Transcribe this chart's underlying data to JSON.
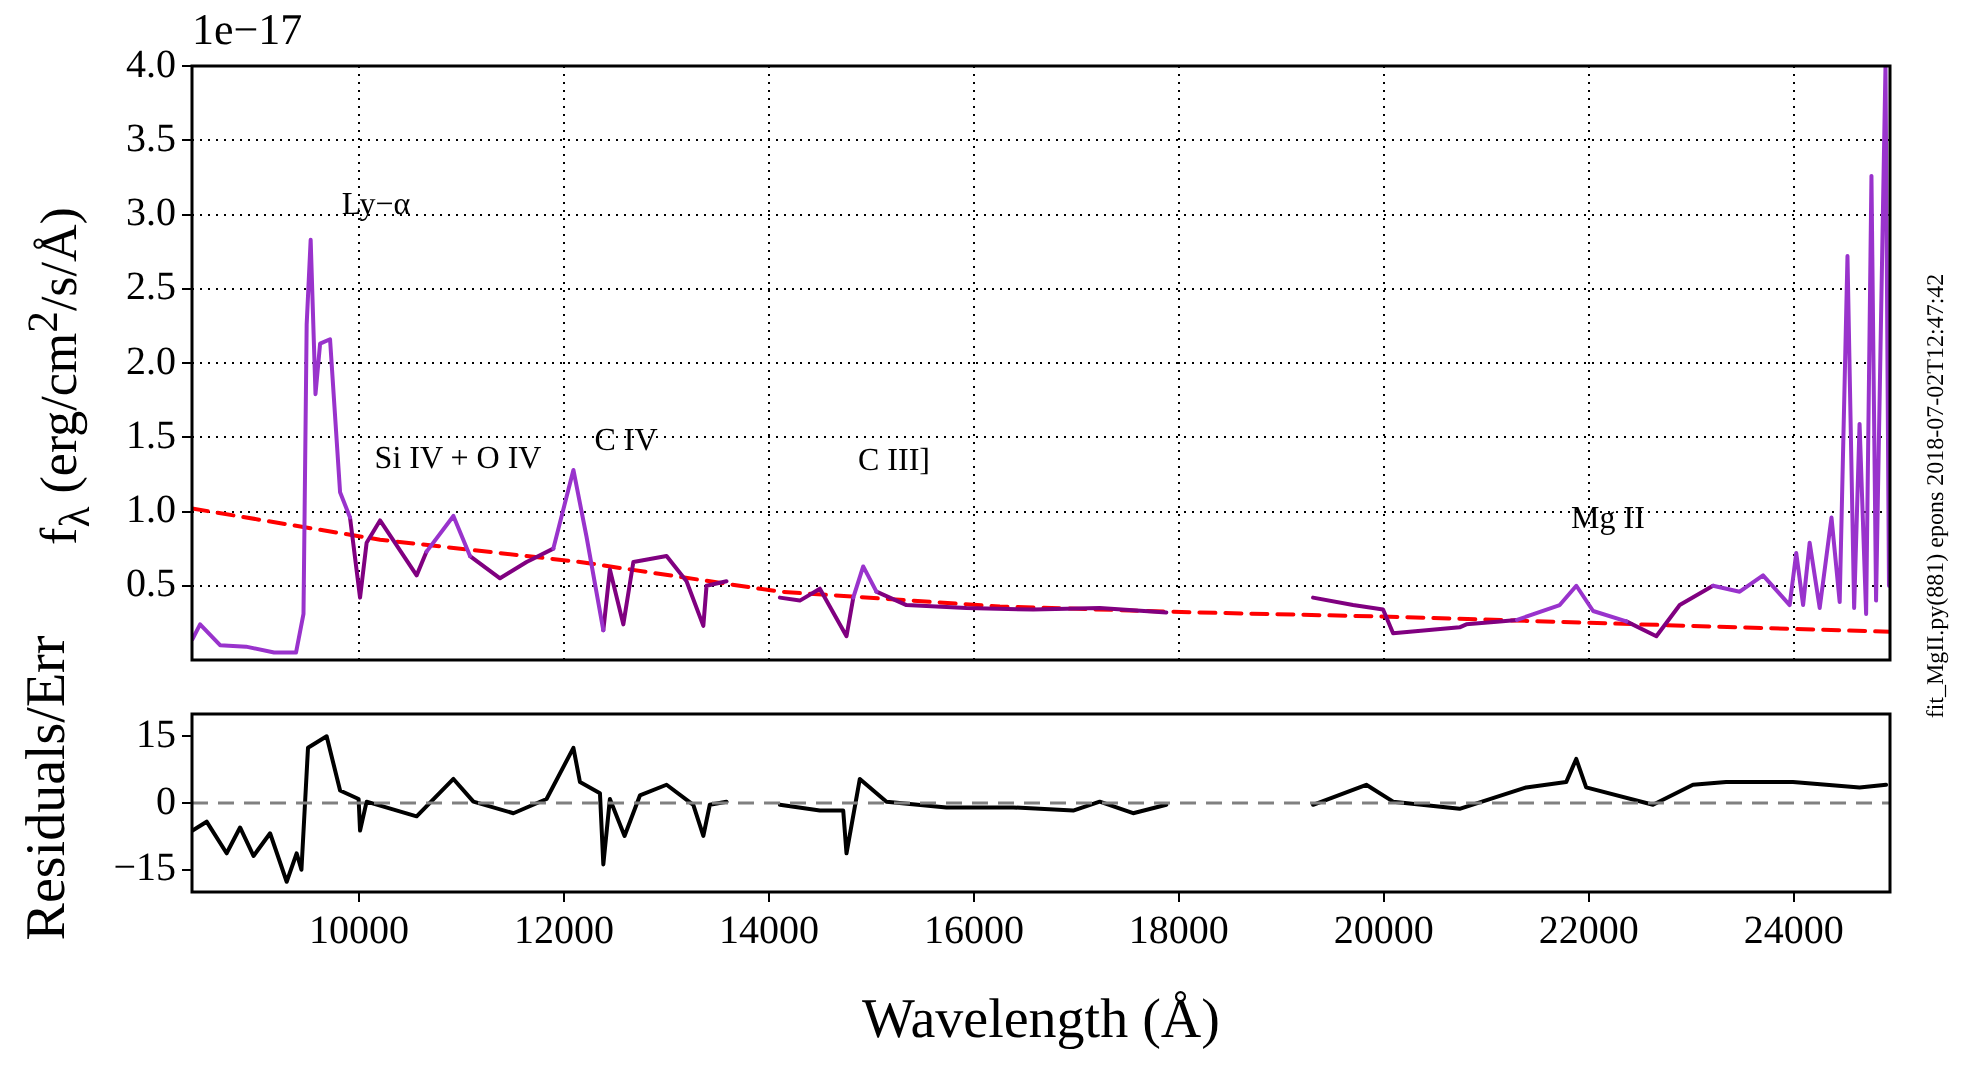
{
  "chart_data": [
    {
      "type": "line",
      "ylabel": "f$_{λ}$ (erg/cm$^{2}$/s/Å)",
      "annotations": [
        "1e−17",
        "fit_MgII.py(881) epons 2018-07-02T12:47:42",
        "Ly−α",
        "Si IV + O IV",
        "C IV",
        "C III]",
        "Mg II"
      ],
      "series": [
        {
          "color": "#9933cc",
          "x": [
            8375,
            8449,
            8644,
            8898,
            9171,
            9385,
            9458,
            9489,
            9528,
            9575,
            9620,
            9717,
            9815,
            9912,
            10300,
            10659,
            10921,
            11083,
            11500,
            11896,
            12092,
            12220,
            12384,
            13000,
            14823,
            14920,
            15049,
            18000,
            21300,
            21717,
            21879,
            22043,
            22367,
            22800,
            23213,
            23473,
            23701,
            23961,
            24025,
            24092,
            24156,
            24254,
            24369,
            24449,
            24525,
            24590,
            24643,
            24707,
            24759,
            24804,
            24896,
            24930
          ],
          "values": [
            0.14,
            0.24,
            0.1,
            0.09,
            0.05,
            0.05,
            0.31,
            2.26,
            2.83,
            1.79,
            2.13,
            2.16,
            1.13,
            0.96,
            null,
            0.73,
            0.97,
            0.7,
            null,
            0.75,
            1.28,
            0.83,
            0.2,
            null,
            0.42,
            0.63,
            0.46,
            null,
            0.27,
            0.37,
            0.5,
            0.33,
            0.26,
            null,
            0.5,
            0.46,
            0.57,
            0.37,
            0.72,
            0.37,
            0.79,
            0.35,
            0.96,
            0.39,
            2.72,
            0.35,
            1.59,
            0.31,
            3.26,
            0.4,
            4.0,
            0.5
          ]
        },
        {
          "color": "#800080",
          "x": [
            9912,
            10010,
            10074,
            10205,
            10562,
            10659,
            10900,
            11083,
            11376,
            11635,
            11896,
            12100,
            12384,
            12448,
            12579,
            12677,
            13001,
            13196,
            13360,
            13391,
            13586,
            13800,
            14107,
            14302,
            14497,
            14757,
            14823,
            14950,
            15049,
            15342,
            15927,
            16579,
            17228,
            17878,
            18600,
            19310,
            19700,
            19993,
            20091,
            20740,
            20806,
            21132,
            21300,
            21800,
            22367,
            22660,
            22888,
            23213
          ],
          "values": [
            0.96,
            0.42,
            0.79,
            0.94,
            0.57,
            0.73,
            null,
            0.7,
            0.55,
            0.66,
            0.75,
            null,
            0.2,
            0.61,
            0.24,
            0.66,
            0.7,
            0.53,
            0.23,
            0.5,
            0.53,
            null,
            0.42,
            0.4,
            0.48,
            0.16,
            0.42,
            null,
            0.46,
            0.37,
            0.35,
            0.34,
            0.35,
            0.32,
            null,
            0.42,
            0.37,
            0.34,
            0.18,
            0.22,
            0.24,
            0.26,
            0.27,
            null,
            0.26,
            0.16,
            0.37,
            0.5
          ]
        },
        {
          "color": "#ff0000",
          "line_style": "dashed",
          "x": [
            8370,
            10205,
            12156,
            14107,
            16254,
            18200,
            20156,
            22500,
            24940
          ],
          "values": [
            1.02,
            0.81,
            0.66,
            0.46,
            0.36,
            0.32,
            0.29,
            0.24,
            0.19
          ]
        }
      ],
      "xlim": [
        8370,
        24940
      ],
      "xticks": [
        10000,
        12000,
        14000,
        16000,
        18000,
        20000,
        22000,
        24000
      ],
      "ylim": [
        0,
        4.0
      ],
      "yticks": [
        {
          "value": 0.5,
          "label": "0.5"
        },
        {
          "value": 1,
          "label": "1.0"
        },
        {
          "value": 1.5,
          "label": "1.5"
        },
        {
          "value": 2,
          "label": "2.0"
        },
        {
          "value": 2.5,
          "label": "2.5"
        },
        {
          "value": 3,
          "label": "3.0"
        },
        {
          "value": 3.5,
          "label": "3.5"
        },
        {
          "value": 4,
          "label": "4.0"
        }
      ],
      "grid": true,
      "tick_labels": "y"
    },
    {
      "type": "line",
      "xlabel": "Wavelength (Å)",
      "ylabel": "Residuals/Err",
      "series": [
        {
          "color": "#000000",
          "x": [
            8375,
            8513,
            8708,
            8839,
            8970,
            9132,
            9294,
            9391,
            9438,
            9502,
            9684,
            9815,
            9996,
            10010,
            10074,
            10562,
            10921,
            11116,
            11506,
            11830,
            12092,
            12156,
            12351,
            12384,
            12448,
            12591,
            12741,
            13001,
            13262,
            13360,
            13423,
            13586,
            13800,
            14107,
            14497,
            14725,
            14757,
            14887,
            15147,
            15732,
            16384,
            16969,
            17228,
            17554,
            17878,
            18600,
            19310,
            19829,
            20091,
            20740,
            21390,
            21780,
            21878,
            21975,
            22627,
            23017,
            23341,
            23993,
            24643,
            24902
          ],
          "values": [
            -6.2,
            -4.2,
            -11.3,
            -5.5,
            -11.9,
            -6.8,
            -17.7,
            -11.3,
            -15,
            12.4,
            15,
            2.8,
            0.9,
            -6.2,
            0.3,
            -3,
            5.4,
            0.3,
            -2.3,
            0.9,
            12.4,
            4.7,
            2.2,
            -13.8,
            0.9,
            -7.4,
            1.7,
            4.1,
            -0.4,
            -7.4,
            -0.4,
            0.3,
            null,
            -0.4,
            -1.7,
            -1.7,
            -11.3,
            5.4,
            0.3,
            -1.0,
            -1.0,
            -1.7,
            0.3,
            -2.3,
            -0.4,
            null,
            -0.4,
            4.1,
            0.3,
            -1.3,
            3.5,
            4.7,
            9.9,
            3.5,
            -0.4,
            4.1,
            4.7,
            4.7,
            3.5,
            4.1
          ]
        }
      ],
      "ref_lines": [
        {
          "axis": "y",
          "value": 0,
          "color": "#808080",
          "line_style": "dashed"
        }
      ],
      "xlim": [
        8370,
        24940
      ],
      "xticks": [
        10000,
        12000,
        14000,
        16000,
        18000,
        20000,
        22000,
        24000
      ],
      "ylim": [
        -20,
        20
      ],
      "yticks": [
        {
          "value": -15,
          "label": "−15"
        },
        0,
        15
      ],
      "grid": false
    }
  ]
}
